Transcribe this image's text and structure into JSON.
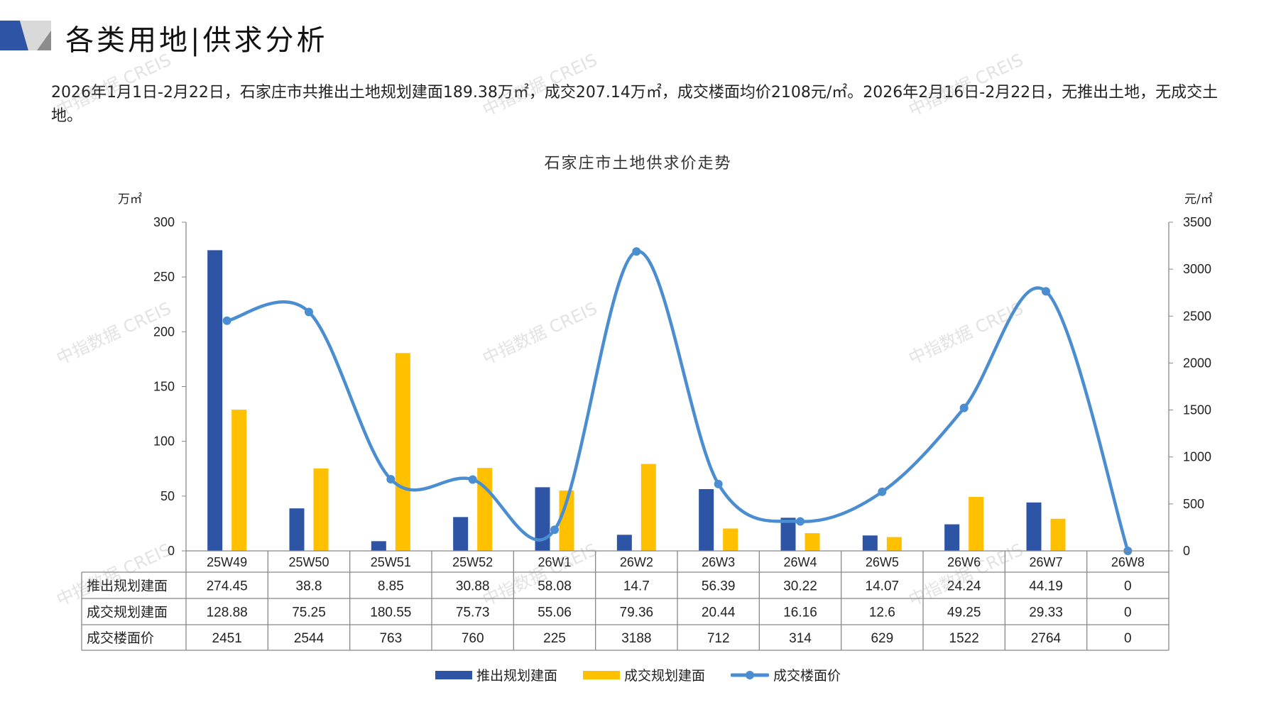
{
  "header": {
    "title": "各类用地|供求分析"
  },
  "summary": "2026年1月1日-2月22日，石家庄市共推出土地规划建面189.38万㎡，成交207.14万㎡，成交楼面均价2108元/㎡。2026年2月16日-2月22日，无推出土地，无成交土地。",
  "watermark": "中指数据 CREIS",
  "colors": {
    "supply": "#2E54A6",
    "deal": "#FFC000",
    "price": "#4A8DD0"
  },
  "chart_data": {
    "type": "bar+line",
    "title": "石家庄市土地供求价走势",
    "y_left_unit": "万㎡",
    "y_right_unit": "元/㎡",
    "y_left_range": [
      0,
      300
    ],
    "y_left_ticks": [
      "0",
      "50",
      "100",
      "150",
      "200",
      "250",
      "300"
    ],
    "y_right_range": [
      0,
      3500
    ],
    "y_right_ticks": [
      "0",
      "500",
      "1000",
      "1500",
      "2000",
      "2500",
      "3000",
      "3500"
    ],
    "categories": [
      "25W49",
      "25W50",
      "25W51",
      "25W52",
      "26W1",
      "26W2",
      "26W3",
      "26W4",
      "26W5",
      "26W6",
      "26W7",
      "26W8"
    ],
    "series": [
      {
        "name": "推出规划建面",
        "type": "bar",
        "axis": "left",
        "values": [
          274.45,
          38.8,
          8.85,
          30.88,
          58.08,
          14.7,
          56.39,
          30.22,
          14.07,
          24.24,
          44.19,
          0
        ]
      },
      {
        "name": "成交规划建面",
        "type": "bar",
        "axis": "left",
        "values": [
          128.88,
          75.25,
          180.55,
          75.73,
          55.06,
          79.36,
          20.44,
          16.16,
          12.6,
          49.25,
          29.33,
          0
        ]
      },
      {
        "name": "成交楼面价",
        "type": "line",
        "axis": "right",
        "smooth": true,
        "values": [
          2451,
          2544,
          763,
          760,
          225,
          3188,
          712,
          314,
          629,
          1522,
          2764,
          0
        ]
      }
    ],
    "table": {
      "row_labels": [
        "推出规划建面",
        "成交规划建面",
        "成交楼面价"
      ],
      "rows": [
        [
          "274.45",
          "38.8",
          "8.85",
          "30.88",
          "58.08",
          "14.7",
          "56.39",
          "30.22",
          "14.07",
          "24.24",
          "44.19",
          "0"
        ],
        [
          "128.88",
          "75.25",
          "180.55",
          "75.73",
          "55.06",
          "79.36",
          "20.44",
          "16.16",
          "12.6",
          "49.25",
          "29.33",
          "0"
        ],
        [
          "2451",
          "2544",
          "763",
          "760",
          "225",
          "3188",
          "712",
          "314",
          "629",
          "1522",
          "2764",
          "0"
        ]
      ]
    },
    "legend": "bottom"
  }
}
